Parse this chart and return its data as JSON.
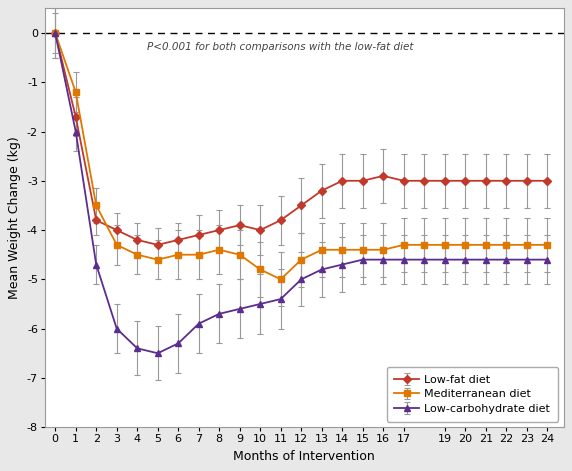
{
  "months": [
    0,
    1,
    2,
    3,
    4,
    5,
    6,
    7,
    8,
    9,
    10,
    11,
    12,
    13,
    14,
    15,
    16,
    17,
    18,
    19,
    20,
    21,
    22,
    23,
    24
  ],
  "low_fat": [
    0,
    -1.7,
    -3.8,
    -4.0,
    -4.2,
    -4.3,
    -4.2,
    -4.1,
    -4.0,
    -3.9,
    -4.0,
    -3.8,
    -3.5,
    -3.2,
    -3.0,
    -3.0,
    -2.9,
    -3.0,
    -3.0,
    -3.0,
    -3.0,
    -3.0,
    -3.0,
    -3.0,
    -3.0
  ],
  "low_fat_err": [
    0.5,
    0.4,
    0.3,
    0.35,
    0.35,
    0.35,
    0.35,
    0.4,
    0.4,
    0.4,
    0.5,
    0.5,
    0.55,
    0.55,
    0.55,
    0.55,
    0.55,
    0.55,
    0.55,
    0.55,
    0.55,
    0.55,
    0.55,
    0.55,
    0.55
  ],
  "mediterranean": [
    0,
    -1.2,
    -3.5,
    -4.3,
    -4.5,
    -4.6,
    -4.5,
    -4.5,
    -4.4,
    -4.5,
    -4.8,
    -5.0,
    -4.6,
    -4.4,
    -4.4,
    -4.4,
    -4.4,
    -4.3,
    -4.3,
    -4.3,
    -4.3,
    -4.3,
    -4.3,
    -4.3,
    -4.3
  ],
  "mediterranean_err": [
    0.4,
    0.4,
    0.35,
    0.4,
    0.4,
    0.4,
    0.5,
    0.5,
    0.5,
    0.5,
    0.55,
    0.55,
    0.55,
    0.55,
    0.55,
    0.55,
    0.55,
    0.55,
    0.55,
    0.55,
    0.55,
    0.55,
    0.55,
    0.55,
    0.55
  ],
  "low_carb": [
    0,
    -2.0,
    -4.7,
    -6.0,
    -6.4,
    -6.5,
    -6.3,
    -5.9,
    -5.7,
    -5.6,
    -5.5,
    -5.4,
    -5.0,
    -4.8,
    -4.7,
    -4.6,
    -4.6,
    -4.6,
    -4.6,
    -4.6,
    -4.6,
    -4.6,
    -4.6,
    -4.6,
    -4.6
  ],
  "low_carb_err": [
    0.5,
    0.4,
    0.4,
    0.5,
    0.55,
    0.55,
    0.6,
    0.6,
    0.6,
    0.6,
    0.6,
    0.6,
    0.55,
    0.55,
    0.55,
    0.5,
    0.5,
    0.5,
    0.5,
    0.5,
    0.5,
    0.5,
    0.5,
    0.5,
    0.5
  ],
  "low_fat_color": "#C0392B",
  "mediterranean_color": "#E07800",
  "low_carb_color": "#5B2D8E",
  "xlabel": "Months of Intervention",
  "ylabel": "Mean Weight Change (kg)",
  "annotation": "P<0.001 for both comparisons with the low-fat diet",
  "ylim": [
    -8,
    0.5
  ],
  "yticks": [
    0,
    -1,
    -2,
    -3,
    -4,
    -5,
    -6,
    -7,
    -8
  ],
  "xtick_labels": [
    0,
    1,
    2,
    3,
    4,
    5,
    6,
    7,
    8,
    9,
    10,
    11,
    12,
    13,
    14,
    15,
    16,
    17,
    19,
    20,
    21,
    22,
    23,
    24
  ],
  "fig_bg": "#E8E8E8",
  "plot_bg": "#FFFFFF"
}
